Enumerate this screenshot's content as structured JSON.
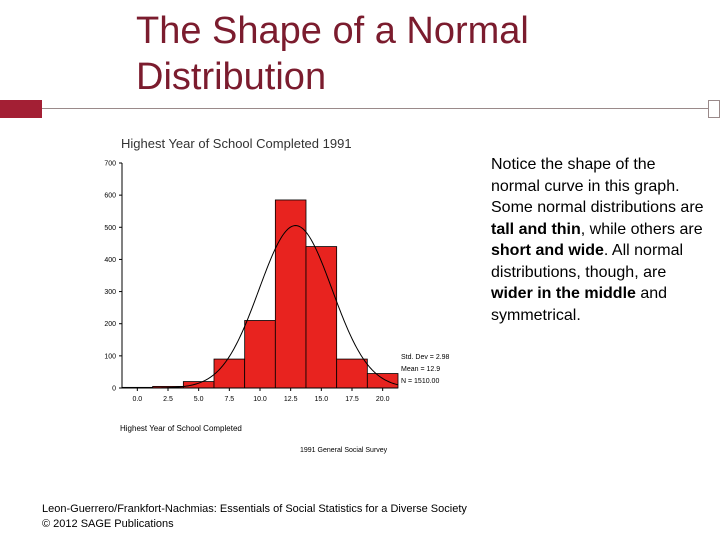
{
  "slide": {
    "title": "The Shape of a Normal Distribution",
    "note_parts": [
      {
        "text": "Notice the shape of the normal curve in this graph.  Some normal distributions are ",
        "bold": false
      },
      {
        "text": "tall and thin",
        "bold": true
      },
      {
        "text": ", while others are ",
        "bold": false
      },
      {
        "text": "short and wide",
        "bold": true
      },
      {
        "text": ".  All normal distributions, though, are ",
        "bold": false
      },
      {
        "text": "wider in the middle",
        "bold": true
      },
      {
        "text": " and symmetrical.",
        "bold": false
      }
    ],
    "footer_line1": "Leon-Guerrero/Frankfort-Nachmias: Essentials of Social Statistics for a Diverse Society",
    "footer_line2": "© 2012 SAGE Publications"
  },
  "chart_data": {
    "type": "bar",
    "title": "Highest Year of School Completed 1991",
    "xlabel": "Highest Year of School Completed",
    "source": "1991 General Social Survey",
    "bin_centers": [
      0.0,
      2.5,
      5.0,
      7.5,
      10.0,
      12.5,
      15.0,
      17.5,
      20.0
    ],
    "x_tick_labels": [
      "0.0",
      "2.5",
      "5.0",
      "7.5",
      "10.0",
      "12.5",
      "15.0",
      "17.5",
      "20.0"
    ],
    "values": [
      2,
      5,
      20,
      90,
      210,
      585,
      440,
      90,
      45
    ],
    "ylim": [
      0,
      700
    ],
    "y_ticks": [
      0,
      100,
      200,
      300,
      400,
      500,
      600,
      700
    ],
    "bar_color": "#e8231f",
    "normal_curve": {
      "mean": 12.9,
      "std": 2.98,
      "n": 1510
    },
    "stats_labels": [
      "Std. Dev = 2.98",
      "Mean = 12.9",
      "N = 1510.00"
    ],
    "grid": false
  }
}
